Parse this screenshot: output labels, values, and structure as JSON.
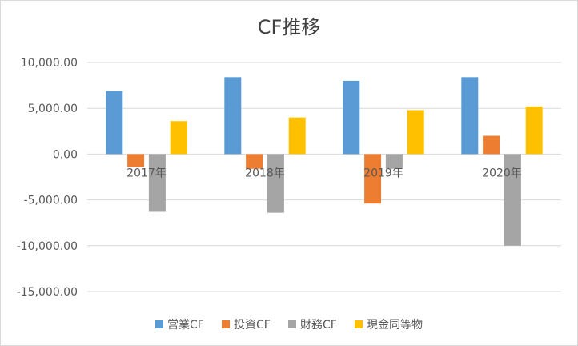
{
  "chart_data": {
    "type": "bar",
    "title": "CF推移",
    "categories": [
      "2017年",
      "2018年",
      "2019年",
      "2020年"
    ],
    "series": [
      {
        "name": "営業CF",
        "values": [
          6900,
          8400,
          8000,
          8400
        ],
        "color": "#5b9bd5"
      },
      {
        "name": "投資CF",
        "values": [
          -1400,
          -1600,
          -5400,
          2000
        ],
        "color": "#ed7d31"
      },
      {
        "name": "財務CF",
        "values": [
          -6300,
          -6400,
          -1600,
          -10000
        ],
        "color": "#a5a5a5"
      },
      {
        "name": "現金同等物",
        "values": [
          3600,
          4000,
          4800,
          5200
        ],
        "color": "#ffc000"
      }
    ],
    "ylim": [
      -15000,
      10000
    ],
    "yticks": [
      10000,
      5000,
      0,
      -5000,
      -10000,
      -15000
    ],
    "ytick_labels": [
      "10,000.00",
      "5,000.00",
      "0.00",
      "-5,000.00",
      "-10,000.00",
      "-15,000.00"
    ],
    "grid": true,
    "legend_position": "bottom",
    "gridline_color": "#d9d9d9",
    "text_color": "#595959"
  }
}
